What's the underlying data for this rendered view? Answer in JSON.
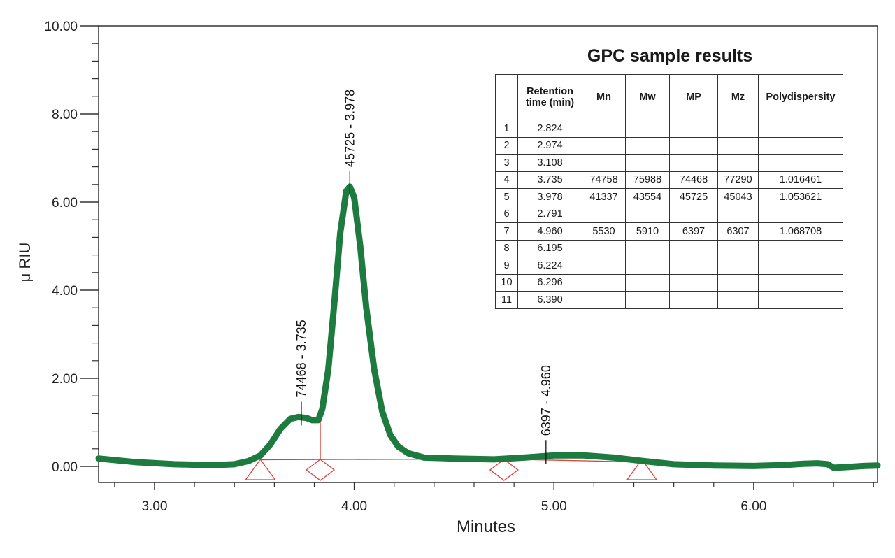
{
  "chart_data": {
    "type": "line",
    "xlabel": "Minutes",
    "ylabel": "μ RIU",
    "xlim": [
      2.72,
      6.62
    ],
    "ylim": [
      -0.35,
      10.0
    ],
    "x_ticks": [
      "3.00",
      "4.00",
      "5.00",
      "6.00"
    ],
    "x_tick_values": [
      3.0,
      4.0,
      5.0,
      6.0
    ],
    "y_ticks": [
      "0.00",
      "2.00",
      "4.00",
      "6.00",
      "8.00",
      "10.00"
    ],
    "y_tick_values": [
      0,
      2,
      4,
      6,
      8,
      10
    ],
    "line_color": "#1e7b40",
    "baseline_color": "#e0403a",
    "series": [
      {
        "x": [
          2.72,
          2.9,
          3.1,
          3.3,
          3.4,
          3.47,
          3.53,
          3.58,
          3.63,
          3.68,
          3.72,
          3.76,
          3.79,
          3.82,
          3.84,
          3.87,
          3.9,
          3.93,
          3.96,
          3.978,
          4.0,
          4.03,
          4.06,
          4.1,
          4.14,
          4.18,
          4.22,
          4.27,
          4.35,
          4.5,
          4.7,
          4.85,
          5.0,
          5.15,
          5.3,
          5.45,
          5.6,
          5.8,
          6.0,
          6.15,
          6.25,
          6.32,
          6.37,
          6.4,
          6.45,
          6.55,
          6.62
        ],
        "y": [
          0.18,
          0.1,
          0.05,
          0.03,
          0.05,
          0.12,
          0.25,
          0.5,
          0.85,
          1.08,
          1.12,
          1.1,
          1.05,
          1.05,
          1.3,
          2.2,
          3.7,
          5.3,
          6.25,
          6.35,
          6.1,
          5.0,
          3.6,
          2.2,
          1.25,
          0.72,
          0.45,
          0.3,
          0.2,
          0.18,
          0.16,
          0.2,
          0.25,
          0.25,
          0.2,
          0.12,
          0.05,
          0.02,
          0.01,
          0.03,
          0.06,
          0.07,
          0.05,
          -0.03,
          -0.02,
          0.01,
          0.02
        ]
      }
    ],
    "baseline": {
      "x": [
        3.53,
        4.7,
        5.44
      ],
      "y": [
        0.15,
        0.17,
        0.1
      ]
    },
    "markers": [
      {
        "shape": "triangle",
        "x": 3.53
      },
      {
        "shape": "diamond",
        "x": 3.83
      },
      {
        "shape": "diamond",
        "x": 4.75
      },
      {
        "shape": "triangle",
        "x": 5.44
      }
    ],
    "splits": [
      {
        "x": 3.83,
        "y_top": 1.0
      }
    ],
    "peak_labels": [
      {
        "text": "74468 - 3.735",
        "x": 3.735,
        "y": 1.12
      },
      {
        "text": "45725 - 3.978",
        "x": 3.978,
        "y": 6.35
      },
      {
        "text": "6397 - 4.960",
        "x": 4.96,
        "y": 0.25
      }
    ]
  },
  "table": {
    "title": "GPC sample results",
    "headers": [
      "",
      "Retention time (min)",
      "Mn",
      "Mw",
      "MP",
      "Mz",
      "Polydispersity"
    ],
    "rows": [
      [
        "1",
        "2.824",
        "",
        "",
        "",
        "",
        ""
      ],
      [
        "2",
        "2.974",
        "",
        "",
        "",
        "",
        ""
      ],
      [
        "3",
        "3.108",
        "",
        "",
        "",
        "",
        ""
      ],
      [
        "4",
        "3.735",
        "74758",
        "75988",
        "74468",
        "77290",
        "1.016461"
      ],
      [
        "5",
        "3.978",
        "41337",
        "43554",
        "45725",
        "45043",
        "1.053621"
      ],
      [
        "6",
        "2.791",
        "",
        "",
        "",
        "",
        ""
      ],
      [
        "7",
        "4.960",
        "5530",
        "5910",
        "6397",
        "6307",
        "1.068708"
      ],
      [
        "8",
        "6.195",
        "",
        "",
        "",
        "",
        ""
      ],
      [
        "9",
        "6.224",
        "",
        "",
        "",
        "",
        ""
      ],
      [
        "10",
        "6.296",
        "",
        "",
        "",
        "",
        ""
      ],
      [
        "11",
        "6.390",
        "",
        "",
        "",
        "",
        ""
      ]
    ]
  }
}
